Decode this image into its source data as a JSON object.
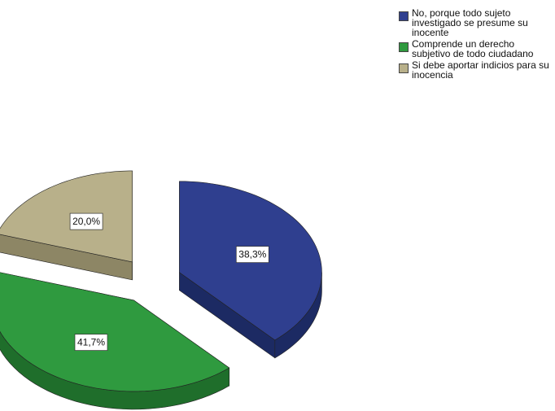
{
  "chart_data": {
    "type": "pie",
    "title": "",
    "three_d": true,
    "exploded": true,
    "legend_placement": "top-right",
    "categories": [
      "No, porque todo sujeto investigado se presume su inocente",
      "Comprende un derecho subjetivo de todo ciudadano",
      "Si debe aportar indicios para su inocencia"
    ],
    "values": [
      38.3,
      41.7,
      20.0
    ],
    "labels": [
      "38,3%",
      "41,7%",
      "20,0%"
    ],
    "colors": [
      "#2f3f8f",
      "#2f9a3f",
      "#b8b08a"
    ],
    "side_colors": [
      "#1c2a63",
      "#1f6e2b",
      "#8d8665"
    ]
  }
}
